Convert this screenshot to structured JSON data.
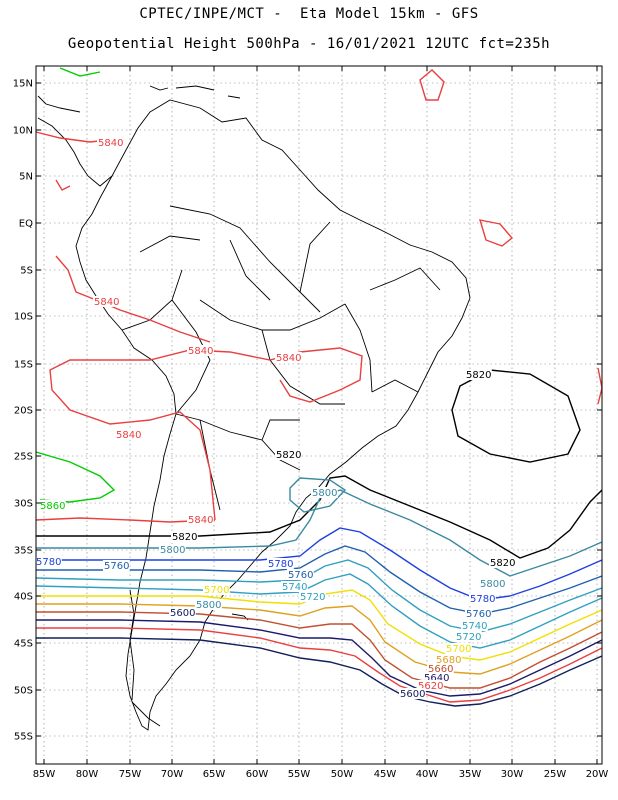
{
  "title_line1": "CPTEC/INPE/MCT -  Eta Model 15km - GFS",
  "title_line2": "Geopotential Height 500hPa - 16/01/2021 12UTC fct=235h",
  "lat_labels": [
    "15N",
    "10N",
    "5N",
    "EQ",
    "5S",
    "10S",
    "15S",
    "20S",
    "25S",
    "30S",
    "35S",
    "40S",
    "45S",
    "50S",
    "55S"
  ],
  "lon_labels": [
    "85W",
    "80W",
    "75W",
    "70W",
    "65W",
    "60W",
    "55W",
    "50W",
    "45W",
    "40W",
    "35W",
    "30W",
    "25W",
    "20W"
  ],
  "colors": {
    "5860": "#00cc00",
    "5840": "#e84040",
    "5820": "#000000",
    "5800": "#3a8aa0",
    "5780": "#1e40e0",
    "5760": "#2060b0",
    "5740": "#30a0c0",
    "5720": "#30a0c0",
    "5700": "#f0e000",
    "5680": "#e0a020",
    "5660": "#c05030",
    "5640": "#1a1a6a",
    "5620": "#e84040",
    "5600": "#10205a",
    "coast": "#000000",
    "grid": "#808080"
  },
  "contour_labels": [
    {
      "text": "5840",
      "level": "5840"
    },
    {
      "text": "5840",
      "level": "5840"
    },
    {
      "text": "5840",
      "level": "5840"
    },
    {
      "text": "5840",
      "level": "5840"
    },
    {
      "text": "5840",
      "level": "5840"
    },
    {
      "text": "5840",
      "level": "5840"
    },
    {
      "text": "5860",
      "level": "5860"
    },
    {
      "text": "5820",
      "level": "5820"
    },
    {
      "text": "5820",
      "level": "5820"
    },
    {
      "text": "5820",
      "level": "5820"
    },
    {
      "text": "5820",
      "level": "5820"
    },
    {
      "text": "5800",
      "level": "5800"
    },
    {
      "text": "5800",
      "level": "5800"
    },
    {
      "text": "5800",
      "level": "5800"
    },
    {
      "text": "5780",
      "level": "5780"
    },
    {
      "text": "5780",
      "level": "5780"
    },
    {
      "text": "5780",
      "level": "5780"
    },
    {
      "text": "5760",
      "level": "5760"
    },
    {
      "text": "5760",
      "level": "5760"
    },
    {
      "text": "5760",
      "level": "5760"
    },
    {
      "text": "5740",
      "level": "5740"
    },
    {
      "text": "5740",
      "level": "5740"
    },
    {
      "text": "5720",
      "level": "5720"
    },
    {
      "text": "5720",
      "level": "5720"
    },
    {
      "text": "5700",
      "level": "5700"
    },
    {
      "text": "5700",
      "level": "5700"
    },
    {
      "text": "5680",
      "level": "5680"
    },
    {
      "text": "5660",
      "level": "5660"
    },
    {
      "text": "5640",
      "level": "5640"
    },
    {
      "text": "5620",
      "level": "5620"
    },
    {
      "text": "5600",
      "level": "5600"
    },
    {
      "text": "5600",
      "level": "5600"
    },
    {
      "text": "5800",
      "level": "5800"
    }
  ]
}
